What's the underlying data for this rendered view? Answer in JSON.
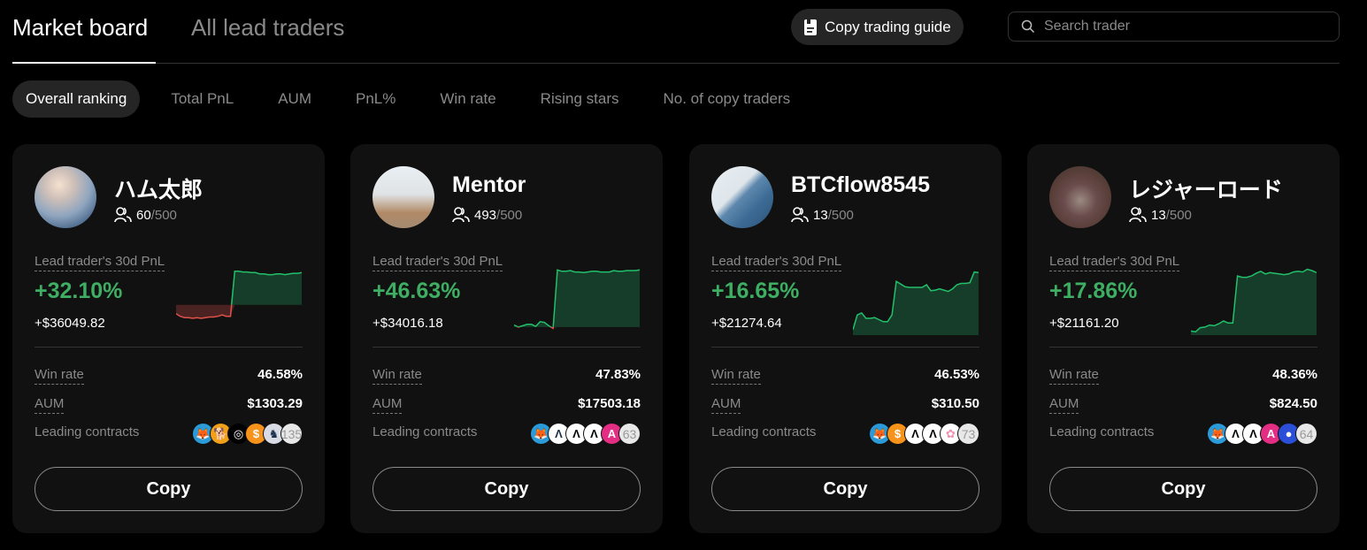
{
  "header": {
    "tabs": [
      {
        "label": "Market board",
        "active": true
      },
      {
        "label": "All lead traders",
        "active": false
      }
    ],
    "guide_button": {
      "label": "Copy trading guide",
      "icon": "document-icon"
    },
    "search": {
      "placeholder": "Search trader",
      "value": "",
      "icon": "search-icon"
    }
  },
  "subtabs": [
    {
      "label": "Overall ranking",
      "active": true
    },
    {
      "label": "Total PnL",
      "active": false
    },
    {
      "label": "AUM",
      "active": false
    },
    {
      "label": "PnL%",
      "active": false
    },
    {
      "label": "Win rate",
      "active": false
    },
    {
      "label": "Rising stars",
      "active": false
    },
    {
      "label": "No. of copy traders",
      "active": false
    }
  ],
  "labels": {
    "pnl_label": "Lead trader's 30d PnL",
    "win_rate": "Win rate",
    "aum": "AUM",
    "leading_contracts": "Leading contracts",
    "copy": "Copy",
    "copiers_sep": "/"
  },
  "colors": {
    "positive": "#3dae62",
    "negative": "#e0524a",
    "card_bg": "#111111",
    "area_pos": "#163d29",
    "area_neg": "#4a2221"
  },
  "traders": [
    {
      "name": "ハム太郎",
      "avatar": "sky-wing-avatar",
      "copiers": "60",
      "copiers_max": "500",
      "pnl_pct": "+32.10%",
      "pnl_abs": "+$36049.82",
      "win_rate": "46.58%",
      "aum": "$1303.29",
      "contracts": [
        "shib-coin",
        "doge-coin",
        "bttc-coin",
        "usdc-coin",
        "1inch-coin"
      ],
      "contracts_more": "135",
      "spark": {
        "baseline": 0.55,
        "points": [
          0.68,
          0.72,
          0.74,
          0.74,
          0.75,
          0.74,
          0.75,
          0.74,
          0.73,
          0.73,
          0.72,
          0.7,
          0.72,
          0.72,
          0.05,
          0.05,
          0.06,
          0.06,
          0.07,
          0.07,
          0.09,
          0.09,
          0.1,
          0.1,
          0.09,
          0.09,
          0.1,
          0.09,
          0.08,
          0.08,
          0.07
        ]
      }
    },
    {
      "name": "Mentor",
      "avatar": "dog-avatar",
      "copiers": "493",
      "copiers_max": "500",
      "pnl_pct": "+46.63%",
      "pnl_abs": "+$34016.18",
      "win_rate": "47.83%",
      "aum": "$17503.18",
      "contracts": [
        "shib-coin",
        "arb-coin",
        "algo-coin",
        "algo-coin",
        "amp-coin"
      ],
      "contracts_more": "63",
      "spark": {
        "baseline": 0.88,
        "points": [
          0.85,
          0.88,
          0.86,
          0.84,
          0.84,
          0.87,
          0.8,
          0.81,
          0.86,
          0.9,
          0.03,
          0.05,
          0.05,
          0.04,
          0.06,
          0.06,
          0.07,
          0.06,
          0.05,
          0.05,
          0.06,
          0.06,
          0.06,
          0.04,
          0.05,
          0.05,
          0.04,
          0.04,
          0.04,
          0.03
        ]
      }
    },
    {
      "name": "BTCflow8545",
      "avatar": "building-avatar",
      "copiers": "13",
      "copiers_max": "500",
      "pnl_pct": "+16.65%",
      "pnl_abs": "+$21274.64",
      "win_rate": "46.53%",
      "aum": "$310.50",
      "contracts": [
        "shib-coin",
        "usdc-coin",
        "algo-coin",
        "algo-coin",
        "flower-coin"
      ],
      "contracts_more": "73",
      "spark": {
        "baseline": 1.0,
        "points": [
          0.92,
          0.7,
          0.67,
          0.75,
          0.75,
          0.74,
          0.77,
          0.8,
          0.8,
          0.7,
          0.2,
          0.24,
          0.28,
          0.29,
          0.29,
          0.29,
          0.29,
          0.25,
          0.34,
          0.33,
          0.31,
          0.33,
          0.35,
          0.31,
          0.25,
          0.23,
          0.23,
          0.22,
          0.06,
          0.07
        ]
      }
    },
    {
      "name": "レジャーロード",
      "avatar": "statue-avatar",
      "copiers": "13",
      "copiers_max": "500",
      "pnl_pct": "+17.86%",
      "pnl_abs": "+$21161.20",
      "win_rate": "48.36%",
      "aum": "$824.50",
      "contracts": [
        "shib-coin",
        "algo-coin",
        "algo-coin",
        "amp-coin",
        "pepe-coin"
      ],
      "contracts_more": "64",
      "spark": {
        "baseline": 1.0,
        "points": [
          0.94,
          0.95,
          0.89,
          0.88,
          0.85,
          0.86,
          0.83,
          0.79,
          0.82,
          0.82,
          0.12,
          0.14,
          0.14,
          0.12,
          0.08,
          0.05,
          0.09,
          0.07,
          0.08,
          0.09,
          0.1,
          0.09,
          0.06,
          0.05,
          0.06,
          0.02,
          0.04,
          0.07
        ]
      }
    }
  ]
}
